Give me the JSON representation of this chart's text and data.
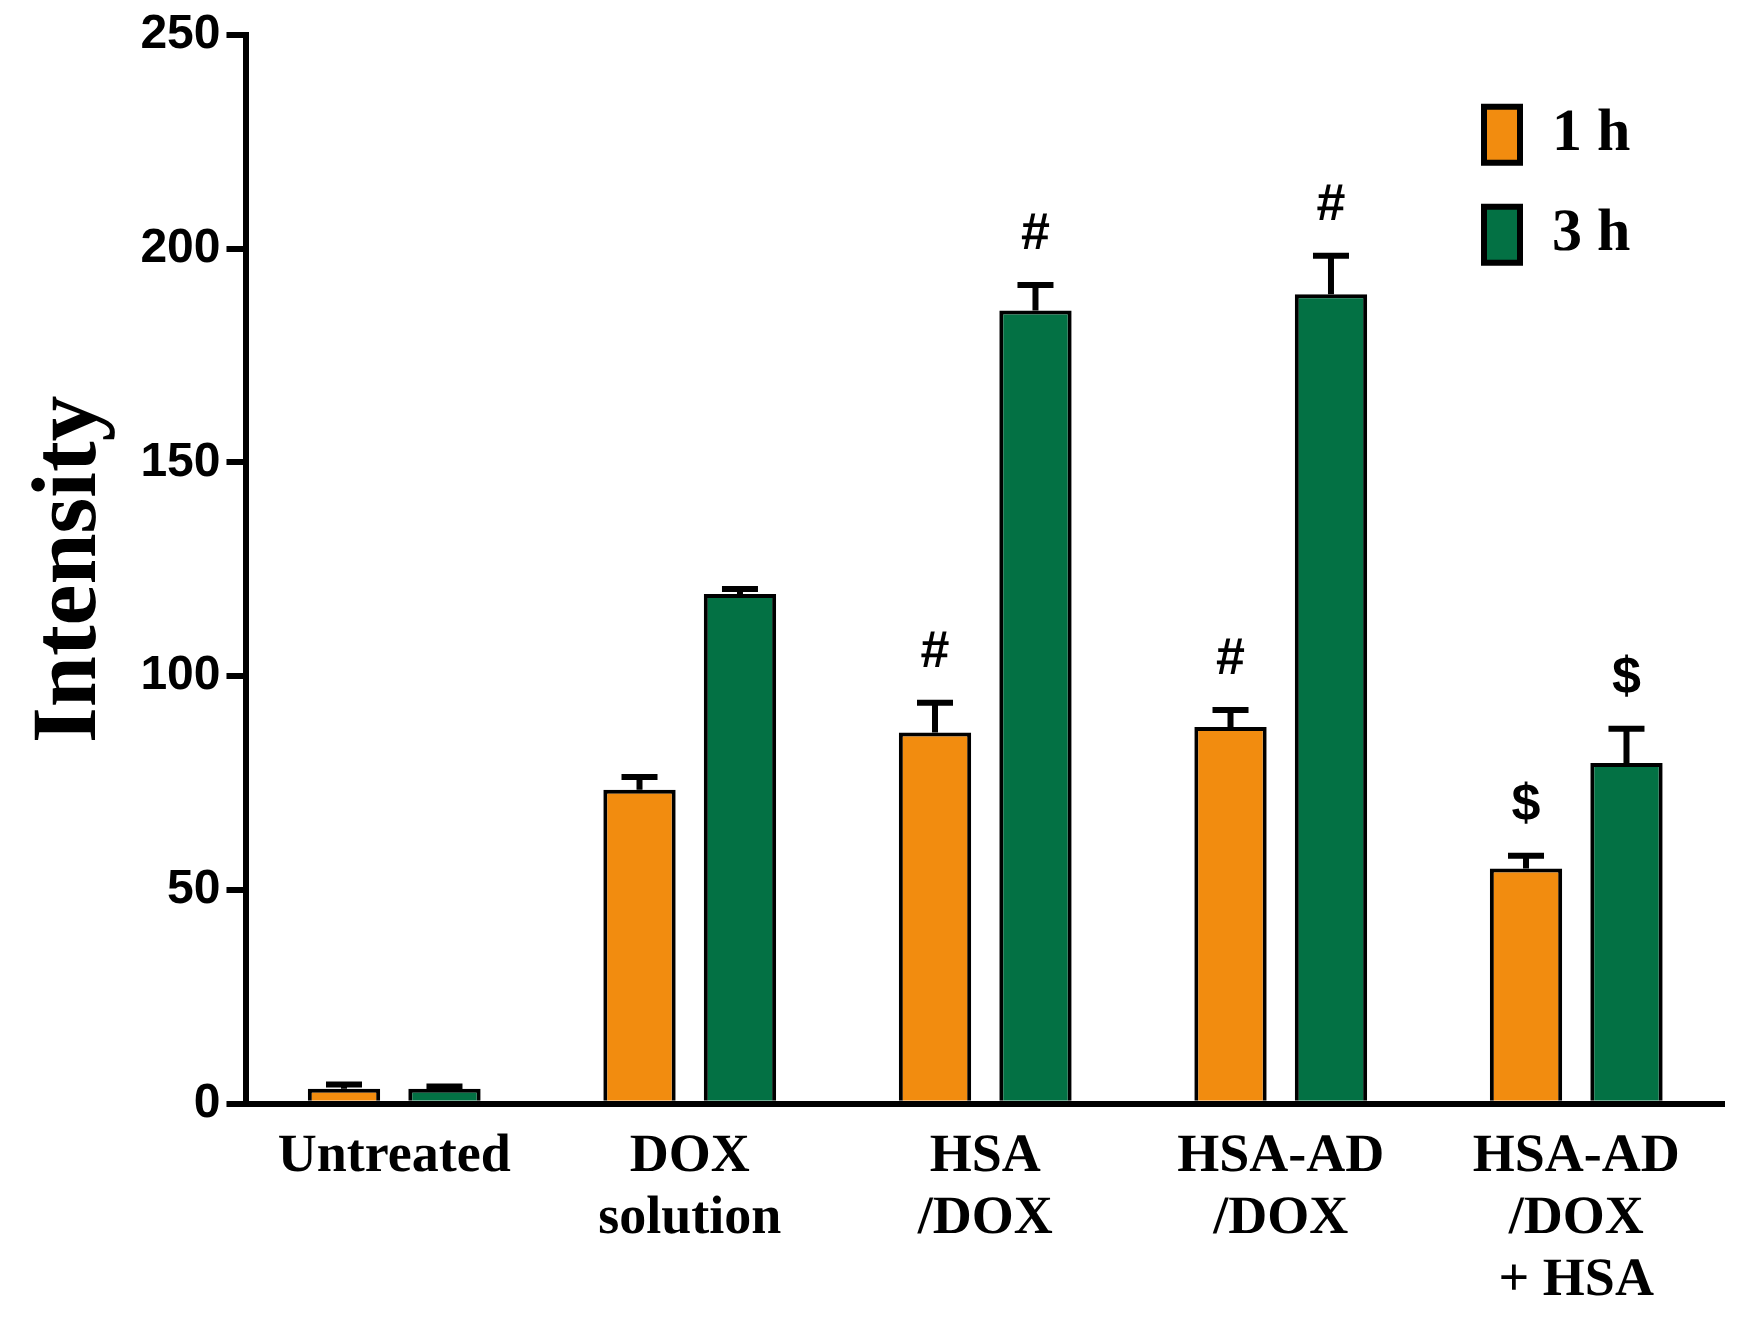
{
  "chart_data": {
    "type": "bar",
    "ylabel": "Intensity",
    "categories": [
      "Untreated",
      "DOX\nsolution",
      "HSA\n/DOX",
      "HSA-AD\n/DOX",
      "HSA-AD\n/DOX\n+ HSA"
    ],
    "series": [
      {
        "name": "1 h",
        "color": "#f28c0f",
        "values": [
          3.5,
          73.4,
          86.8,
          88.1,
          55
        ],
        "errors": [
          1,
          3,
          7,
          4,
          3
        ]
      },
      {
        "name": "3 h",
        "color": "#037144",
        "values": [
          3.5,
          119.2,
          185.5,
          189.3,
          79.7
        ],
        "errors": [
          0.5,
          1.2,
          6,
          9,
          8
        ]
      }
    ],
    "ylim": [
      0,
      250
    ],
    "yticks": [
      0,
      50,
      100,
      150,
      200,
      250
    ],
    "grid": false,
    "legend": "top right",
    "annotations": [
      "#",
      "#",
      "#",
      "#",
      "$",
      "$"
    ]
  }
}
